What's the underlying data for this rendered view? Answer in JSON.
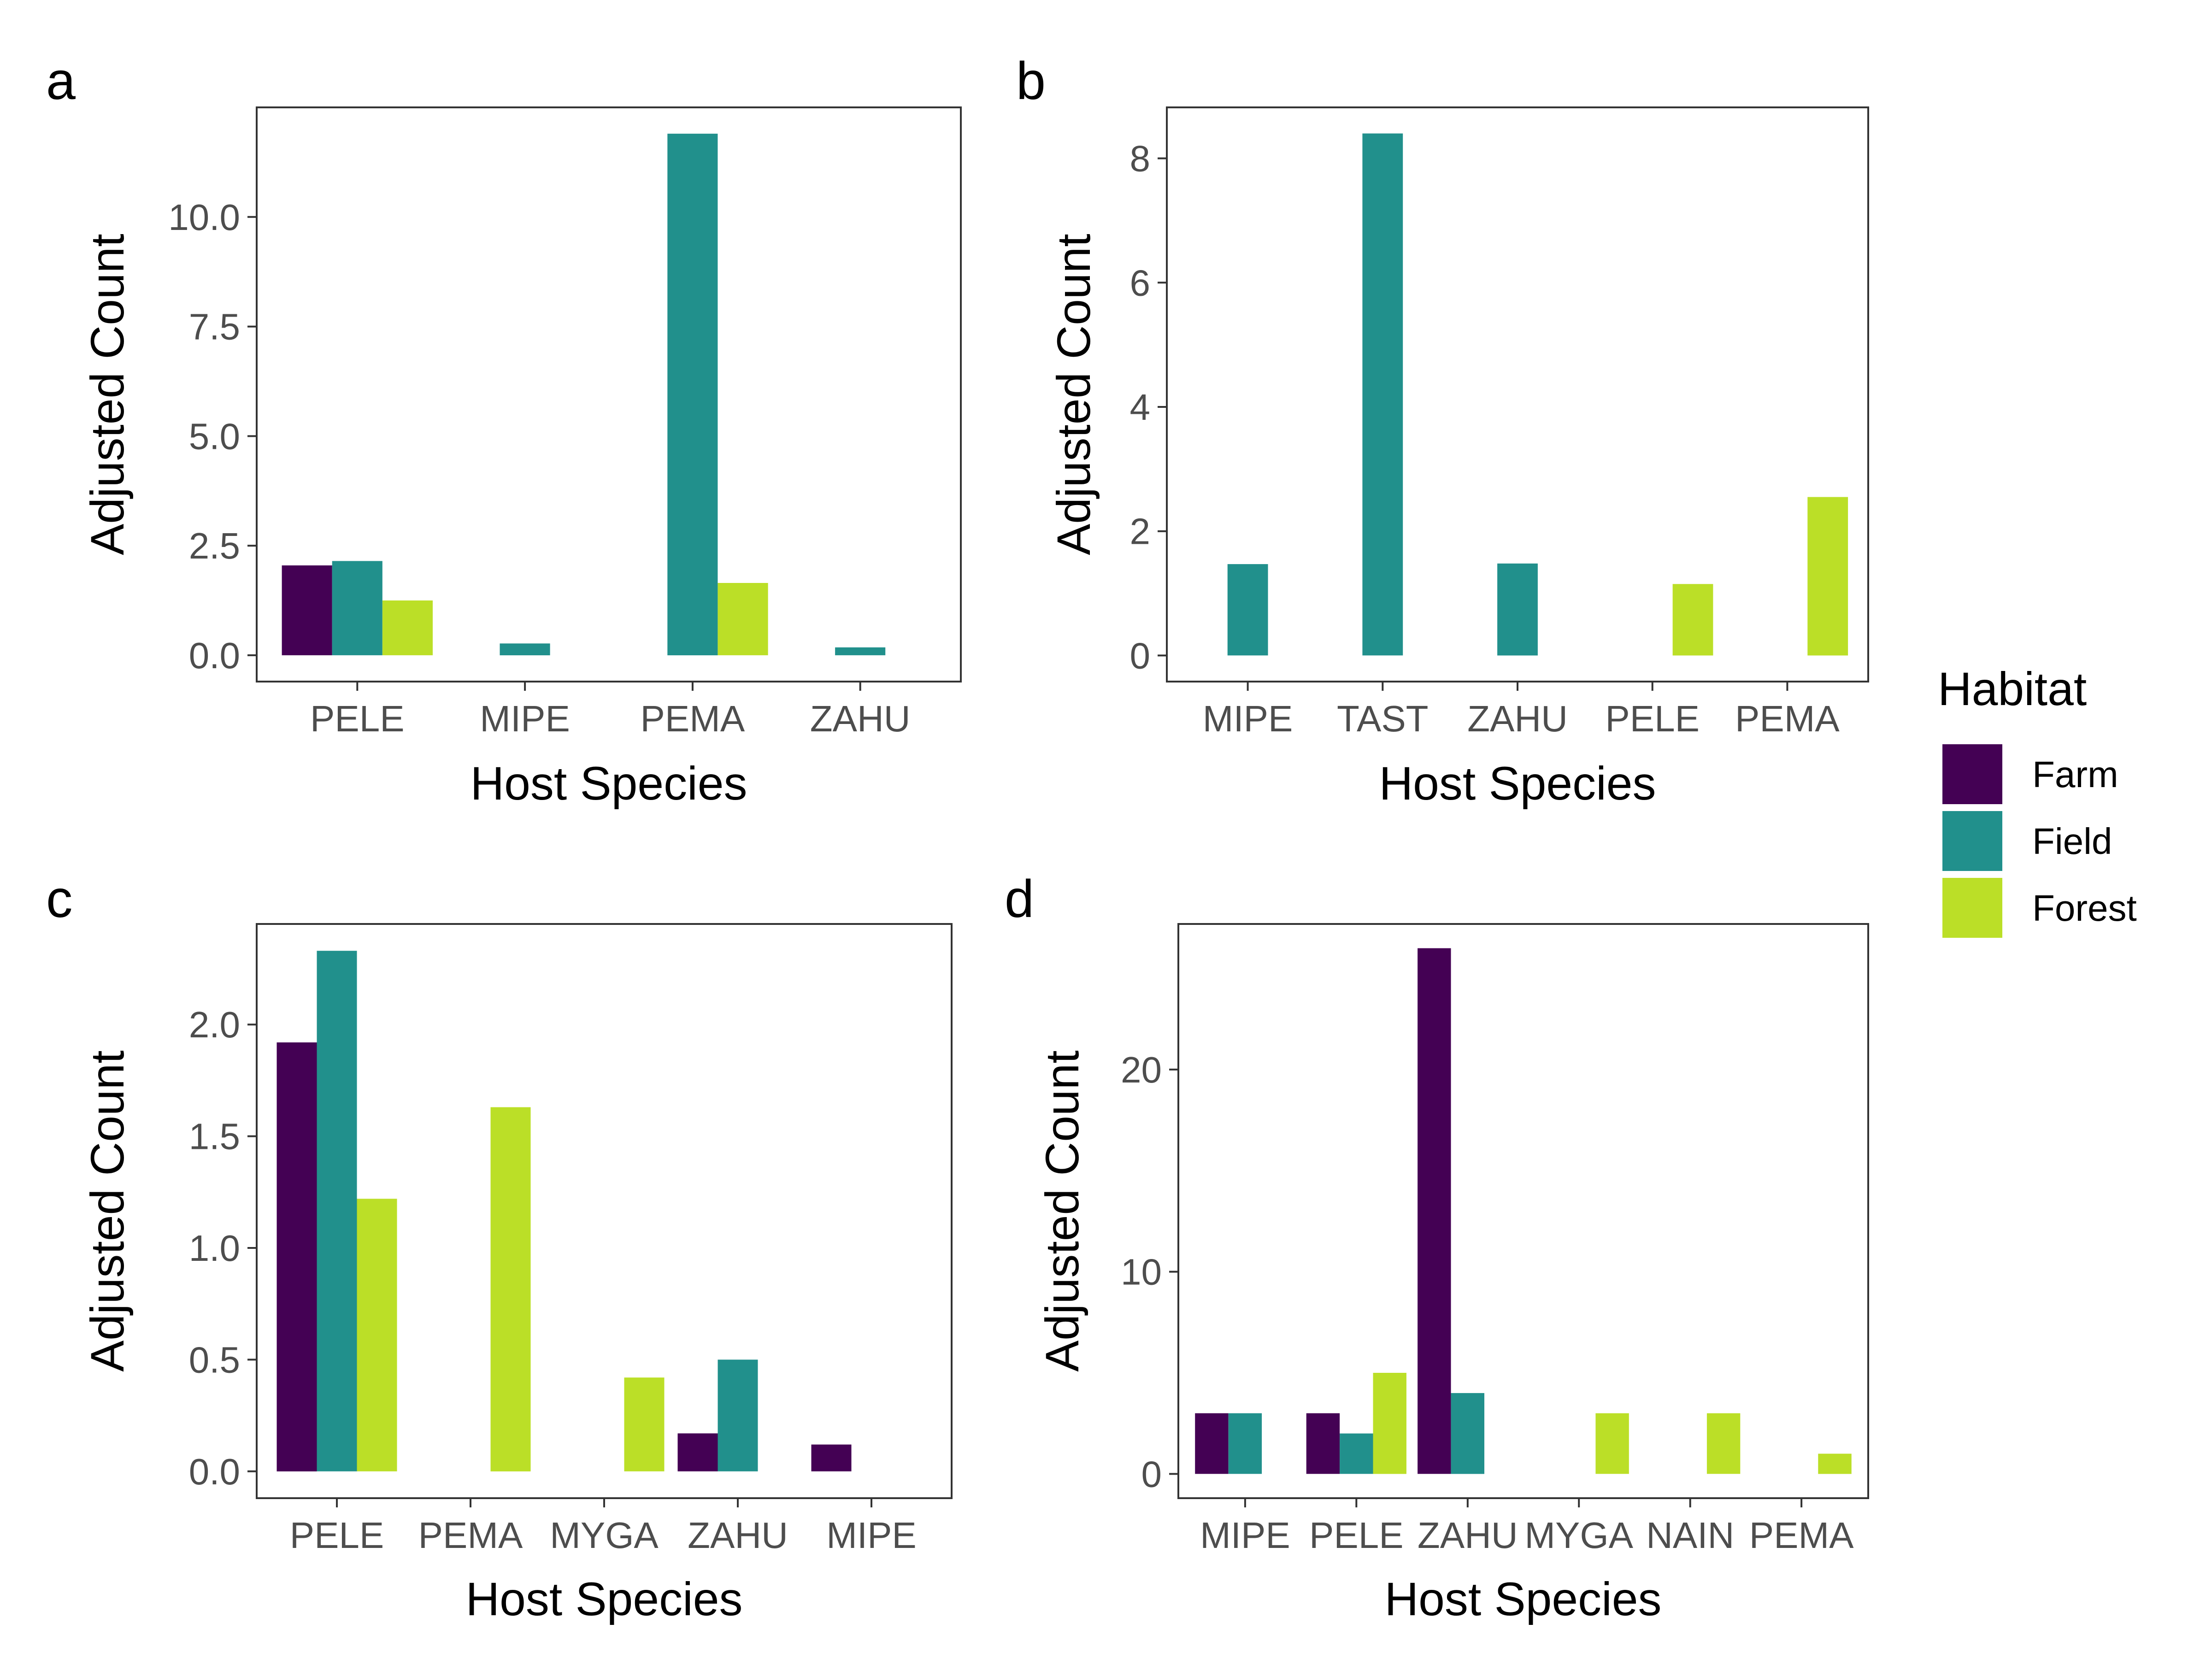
{
  "legend": {
    "title": "Habitat",
    "entries": [
      {
        "label": "Farm",
        "color": "#440154"
      },
      {
        "label": "Field",
        "color": "#21908C"
      },
      {
        "label": "Forest",
        "color": "#BBDF27"
      }
    ]
  },
  "chart_data": [
    {
      "type": "bar",
      "panel": "a",
      "xlabel": "Host Species",
      "ylabel": "Adjusted Count",
      "categories": [
        "PELE",
        "MIPE",
        "PEMA",
        "ZAHU"
      ],
      "ylim": [
        -0.6,
        12.5
      ],
      "yticks": [
        0,
        2.5,
        5,
        7.5,
        10
      ],
      "ytick_labels": [
        "0.0",
        "2.5",
        "5.0",
        "7.5",
        "10.0"
      ],
      "series": [
        {
          "name": "Farm",
          "values": [
            2.05,
            null,
            null,
            null
          ]
        },
        {
          "name": "Field",
          "values": [
            2.15,
            0.27,
            11.9,
            0.18
          ]
        },
        {
          "name": "Forest",
          "values": [
            1.25,
            null,
            1.65,
            null
          ]
        }
      ]
    },
    {
      "type": "bar",
      "panel": "b",
      "xlabel": "Host Species",
      "ylabel": "Adjusted Count",
      "categories": [
        "MIPE",
        "TAST",
        "ZAHU",
        "PELE",
        "PEMA"
      ],
      "ylim": [
        -0.42,
        8.82
      ],
      "yticks": [
        0,
        2,
        4,
        6,
        8
      ],
      "ytick_labels": [
        "0",
        "2",
        "4",
        "6",
        "8"
      ],
      "series": [
        {
          "name": "Farm",
          "values": [
            null,
            null,
            null,
            null,
            null
          ]
        },
        {
          "name": "Field",
          "values": [
            1.47,
            8.4,
            1.48,
            null,
            null
          ]
        },
        {
          "name": "Forest",
          "values": [
            null,
            null,
            null,
            1.15,
            2.55
          ]
        }
      ]
    },
    {
      "type": "bar",
      "panel": "c",
      "xlabel": "Host Species",
      "ylabel": "Adjusted Count",
      "categories": [
        "PELE",
        "PEMA",
        "MYGA",
        "ZAHU",
        "MIPE"
      ],
      "ylim": [
        -0.12,
        2.45
      ],
      "yticks": [
        0,
        0.5,
        1,
        1.5,
        2
      ],
      "ytick_labels": [
        "0.0",
        "0.5",
        "1.0",
        "1.5",
        "2.0"
      ],
      "series": [
        {
          "name": "Farm",
          "values": [
            1.92,
            null,
            null,
            0.17,
            0.12
          ]
        },
        {
          "name": "Field",
          "values": [
            2.33,
            null,
            null,
            0.5,
            null
          ]
        },
        {
          "name": "Forest",
          "values": [
            1.22,
            1.63,
            0.42,
            null,
            null
          ]
        }
      ]
    },
    {
      "type": "bar",
      "panel": "d",
      "xlabel": "Host Species",
      "ylabel": "Adjusted Count",
      "categories": [
        "MIPE",
        "PELE",
        "ZAHU",
        "MYGA",
        "NAIN",
        "PEMA"
      ],
      "ylim": [
        -1.2,
        27.2
      ],
      "yticks": [
        0,
        10,
        20
      ],
      "ytick_labels": [
        "0",
        "10",
        "20"
      ],
      "series": [
        {
          "name": "Farm",
          "values": [
            3,
            3,
            26,
            null,
            null,
            null
          ]
        },
        {
          "name": "Field",
          "values": [
            3,
            2,
            4,
            null,
            null,
            null
          ]
        },
        {
          "name": "Forest",
          "values": [
            null,
            5,
            null,
            3,
            3,
            1
          ]
        }
      ]
    }
  ]
}
